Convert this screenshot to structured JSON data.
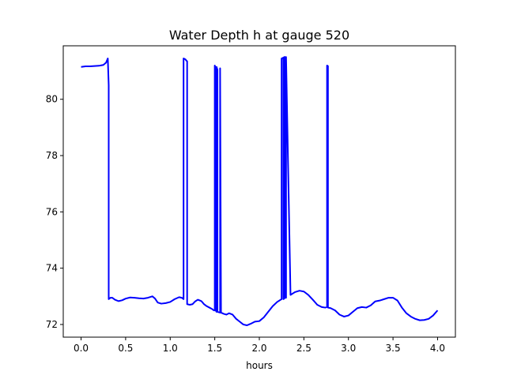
{
  "chart_data": {
    "type": "line",
    "title": "Water Depth h at gauge 520",
    "xlabel": "hours",
    "ylabel": "",
    "xlim": [
      -0.2,
      4.2
    ],
    "ylim": [
      71.55,
      81.9
    ],
    "xticks": [
      0.0,
      0.5,
      1.0,
      1.5,
      2.0,
      2.5,
      3.0,
      3.5,
      4.0
    ],
    "xtick_labels": [
      "0.0",
      "0.5",
      "1.0",
      "1.5",
      "2.0",
      "2.5",
      "3.0",
      "3.5",
      "4.0"
    ],
    "yticks": [
      72,
      74,
      76,
      78,
      80
    ],
    "ytick_labels": [
      "72",
      "74",
      "76",
      "78",
      "80"
    ],
    "grid": false,
    "line_color": "#0000ff",
    "series": [
      {
        "x": [
          0.0,
          0.05,
          0.1,
          0.15,
          0.2,
          0.25,
          0.28,
          0.3,
          0.31,
          0.31,
          0.33,
          0.35,
          0.38,
          0.42,
          0.46,
          0.5,
          0.55,
          0.6,
          0.65,
          0.7,
          0.75,
          0.8,
          0.83,
          0.86,
          0.9,
          0.95,
          1.0,
          1.05,
          1.1,
          1.13,
          1.15,
          1.15,
          1.17,
          1.18,
          1.19,
          1.19,
          1.22,
          1.25,
          1.28,
          1.31,
          1.35,
          1.38,
          1.41,
          1.44,
          1.47,
          1.49,
          1.5,
          1.5,
          1.51,
          1.51,
          1.52,
          1.52,
          1.53,
          1.53,
          1.56,
          1.56,
          1.57,
          1.6,
          1.63,
          1.66,
          1.7,
          1.74,
          1.78,
          1.82,
          1.86,
          1.9,
          1.95,
          2.0,
          2.05,
          2.1,
          2.15,
          2.2,
          2.24,
          2.25,
          2.25,
          2.27,
          2.27,
          2.28,
          2.28,
          2.29,
          2.29,
          2.3,
          2.3,
          2.35,
          2.4,
          2.45,
          2.5,
          2.55,
          2.6,
          2.65,
          2.7,
          2.74,
          2.76,
          2.76,
          2.77,
          2.77,
          2.8,
          2.85,
          2.9,
          2.95,
          3.0,
          3.05,
          3.1,
          3.15,
          3.2,
          3.25,
          3.3,
          3.35,
          3.4,
          3.45,
          3.5,
          3.55,
          3.6,
          3.65,
          3.7,
          3.75,
          3.8,
          3.85,
          3.9,
          3.95,
          4.0
        ],
        "y": [
          81.15,
          81.17,
          81.17,
          81.18,
          81.19,
          81.22,
          81.3,
          81.45,
          80.5,
          72.9,
          72.95,
          72.95,
          72.88,
          72.83,
          72.86,
          72.92,
          72.96,
          72.95,
          72.93,
          72.92,
          72.95,
          73.0,
          72.92,
          72.78,
          72.74,
          72.76,
          72.8,
          72.9,
          72.97,
          72.95,
          72.9,
          81.45,
          81.42,
          81.38,
          81.35,
          72.72,
          72.7,
          72.72,
          72.82,
          72.88,
          72.83,
          72.72,
          72.65,
          72.6,
          72.55,
          72.5,
          72.5,
          81.2,
          81.1,
          72.5,
          72.45,
          81.15,
          81.05,
          72.45,
          72.42,
          81.1,
          72.42,
          72.38,
          72.35,
          72.4,
          72.35,
          72.2,
          72.1,
          72.0,
          71.97,
          72.02,
          72.1,
          72.12,
          72.25,
          72.45,
          72.65,
          72.8,
          72.88,
          72.9,
          81.45,
          81.48,
          72.9,
          72.92,
          81.5,
          81.5,
          72.95,
          72.95,
          81.5,
          73.05,
          73.15,
          73.2,
          73.17,
          73.05,
          72.88,
          72.7,
          72.62,
          72.6,
          72.62,
          81.2,
          81.18,
          72.6,
          72.58,
          72.5,
          72.35,
          72.28,
          72.32,
          72.45,
          72.58,
          72.62,
          72.6,
          72.68,
          72.82,
          72.85,
          72.9,
          72.95,
          72.95,
          72.85,
          72.6,
          72.4,
          72.28,
          72.2,
          72.15,
          72.16,
          72.2,
          72.32,
          72.5
        ]
      }
    ]
  }
}
